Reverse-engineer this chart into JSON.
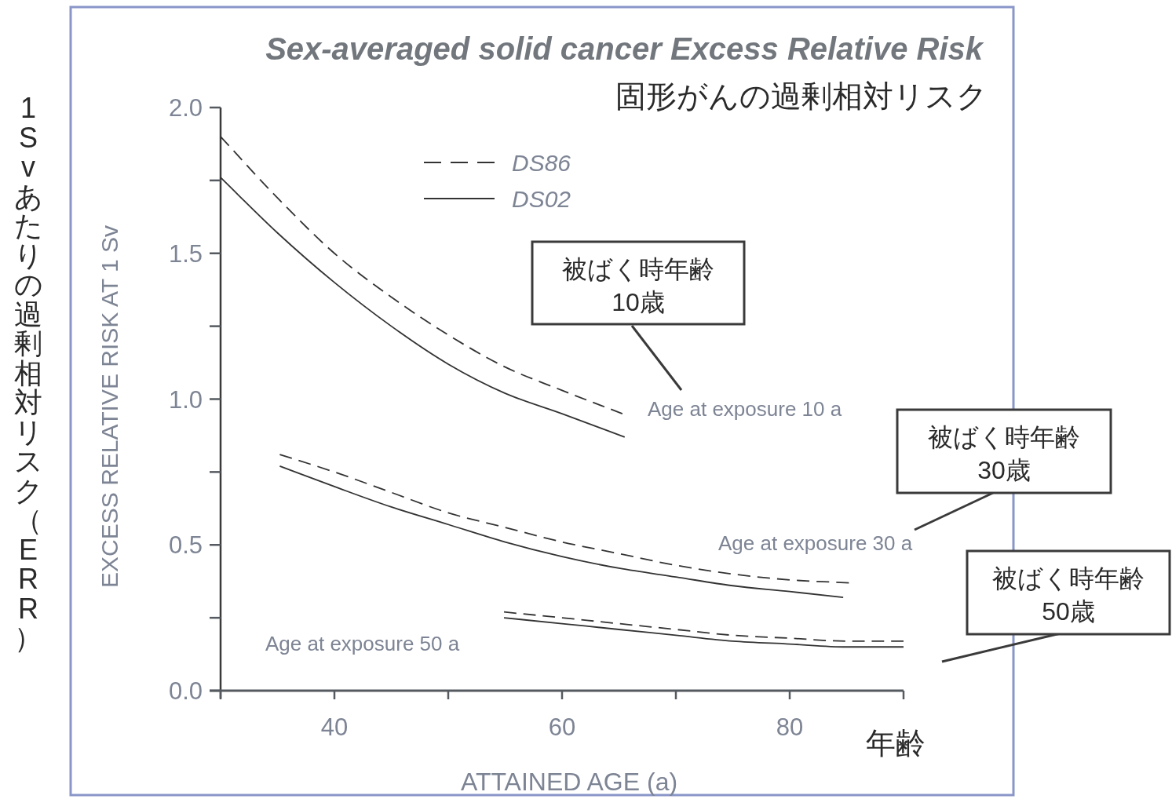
{
  "chart_data": {
    "type": "line",
    "title": "Sex-averaged solid cancer Excess Relative Risk",
    "subtitle": "固形がんの過剰相対リスク",
    "xlabel": "ATTAINED AGE (a)",
    "ylabel": "EXCESS RELATIVE RISK AT 1 Sv",
    "xlim": [
      30,
      90
    ],
    "xticks": [
      {
        "value": 30,
        "label": null
      },
      40,
      {
        "value": 50,
        "label": null
      },
      60,
      {
        "value": 70,
        "label": null
      },
      80,
      {
        "value": 90,
        "label": null
      }
    ],
    "ylim": [
      0,
      2
    ],
    "yticks": [
      {
        "value": 0,
        "label": "0.0"
      },
      {
        "value": 0.25,
        "label": null
      },
      {
        "value": 0.5,
        "label": "0.5"
      },
      {
        "value": 0.75,
        "label": null
      },
      {
        "value": 1,
        "label": "1.0"
      },
      {
        "value": 1.25,
        "label": null
      },
      {
        "value": 1.5,
        "label": "1.5"
      },
      {
        "value": 1.75,
        "label": null
      },
      {
        "value": 2,
        "label": "2.0"
      }
    ],
    "grid": false,
    "legend": "top",
    "marker": "none",
    "series": [
      {
        "name": "DS86",
        "color": "#333333",
        "line_style": "dashed",
        "x": [
          30,
          35,
          40,
          45,
          50,
          55,
          60,
          65.3
        ],
        "values": [
          1.9,
          1.69,
          1.5,
          1.35,
          1.22,
          1.11,
          1.03,
          0.95
        ]
      },
      {
        "name": "DS02",
        "color": "#333333",
        "line_style": "solid",
        "x": [
          30,
          35,
          40,
          45,
          50,
          55,
          60,
          65.5
        ],
        "values": [
          1.76,
          1.57,
          1.4,
          1.25,
          1.12,
          1.02,
          0.95,
          0.87
        ]
      },
      {
        "color": "#333333",
        "line_style": "dashed",
        "x": [
          35.2,
          40,
          45,
          50,
          55,
          60,
          65,
          70,
          75,
          80,
          85.2
        ],
        "values": [
          0.81,
          0.75,
          0.68,
          0.61,
          0.56,
          0.51,
          0.47,
          0.43,
          0.4,
          0.38,
          0.37
        ]
      },
      {
        "color": "#333333",
        "line_style": "solid",
        "x": [
          35.2,
          40,
          45,
          50,
          55,
          60,
          65,
          70,
          75,
          80,
          84.7
        ],
        "values": [
          0.77,
          0.7,
          0.63,
          0.57,
          0.51,
          0.46,
          0.42,
          0.39,
          0.36,
          0.34,
          0.32
        ]
      },
      {
        "color": "#333333",
        "line_style": "dashed",
        "x": [
          54.9,
          60,
          65,
          70,
          75,
          80,
          85,
          90
        ],
        "values": [
          0.27,
          0.25,
          0.23,
          0.21,
          0.19,
          0.18,
          0.17,
          0.17
        ]
      },
      {
        "color": "#333333",
        "line_style": "solid",
        "x": [
          54.9,
          60,
          65,
          70,
          75,
          80,
          85,
          90
        ],
        "values": [
          0.25,
          0.23,
          0.21,
          0.19,
          0.17,
          0.16,
          0.15,
          0.15
        ]
      }
    ],
    "annotations": [
      "Age at exposure 10 a",
      "Age at exposure 30 a",
      "Age at exposure 50 a",
      "被ばく時年齢\n10歳",
      "被ばく時年齢\n30歳",
      "被ばく時年齢\n50歳",
      "年齢",
      "1Svあたりの過剰相対リスク（ERR）"
    ]
  }
}
